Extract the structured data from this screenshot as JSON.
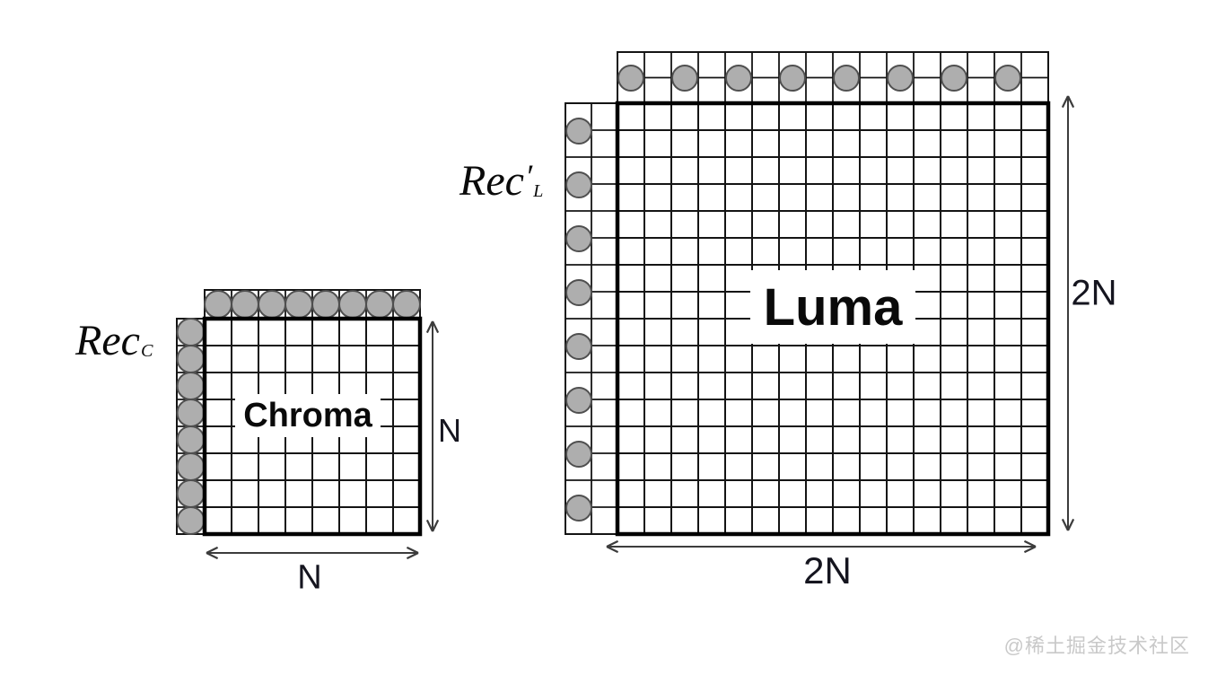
{
  "figure": {
    "background": "#ffffff",
    "watermark": "@稀土掘金技术社区"
  },
  "labels": {
    "chroma_block": "Chroma",
    "luma_block": "Luma",
    "chroma_reconstruction": {
      "base": "Rec",
      "sub": "C"
    },
    "luma_reconstruction": {
      "base": "Rec",
      "prime": "′",
      "sub": "L"
    }
  },
  "dimensions": {
    "chroma_width": "N",
    "chroma_height": "N",
    "luma_width": "2N",
    "luma_height": "2N"
  },
  "diagram": {
    "chroma_block": {
      "grid_cols": 8,
      "grid_rows": 8,
      "top_reference_samples": 8,
      "left_reference_samples": 8,
      "sample_every_n_cells": 1,
      "reference_strip_cells": 1
    },
    "luma_block": {
      "grid_cols": 16,
      "grid_rows": 16,
      "top_reference_samples": 8,
      "left_reference_samples": 8,
      "sample_every_n_cells": 2,
      "reference_strip_cells": 2
    },
    "colors": {
      "sample_fill": "#aeaeae",
      "sample_stroke": "#4f4f4f",
      "grid_line": "#141414",
      "block_border": "#000000",
      "arrow": "#3c3c3c",
      "text": "#0a0a0a",
      "watermark": "#c9c9c9"
    }
  }
}
